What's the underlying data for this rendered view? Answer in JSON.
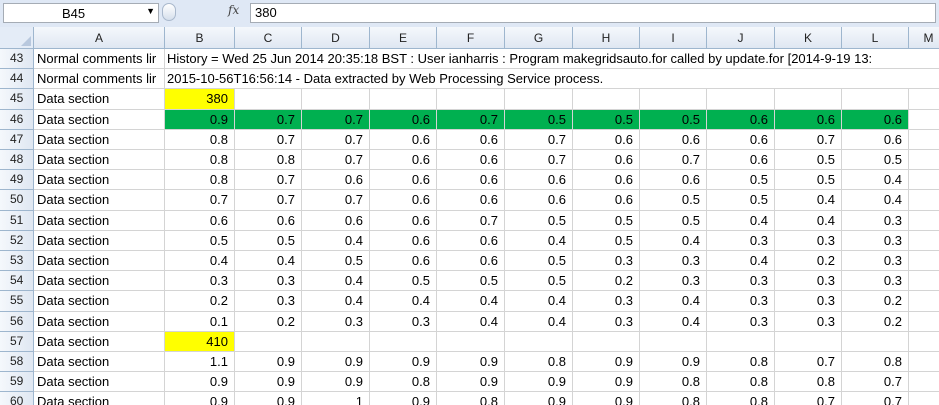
{
  "name_box": "B45",
  "formula_value": "380",
  "columns": [
    "A",
    "B",
    "C",
    "D",
    "E",
    "F",
    "G",
    "H",
    "I",
    "J",
    "K",
    "L",
    "M"
  ],
  "colors": {
    "highlight_yellow": "#ffff00",
    "highlight_green": "#00b050",
    "header_blue": "#dfe8f5"
  },
  "rows": [
    {
      "num": "43",
      "a": "Normal comments lir",
      "b": "History = Wed 25 Jun 2014 20:35:18 BST : User ianharris : Program makegridsauto.for called by update.for [2014-9-19 13:",
      "vals": [],
      "style": "comment"
    },
    {
      "num": "44",
      "a": "Normal comments lir",
      "b": "2015-10-56T16:56:14 - Data extracted by Web Processing Service process.",
      "vals": [],
      "style": "comment"
    },
    {
      "num": "45",
      "a": "Data section",
      "vals": [
        "380"
      ],
      "style": "yellow"
    },
    {
      "num": "46",
      "a": "Data section",
      "vals": [
        "0.9",
        "0.7",
        "0.7",
        "0.6",
        "0.7",
        "0.5",
        "0.5",
        "0.5",
        "0.6",
        "0.6",
        "0.6"
      ],
      "style": "green"
    },
    {
      "num": "47",
      "a": "Data section",
      "vals": [
        "0.8",
        "0.7",
        "0.7",
        "0.6",
        "0.6",
        "0.7",
        "0.6",
        "0.6",
        "0.6",
        "0.7",
        "0.6"
      ],
      "style": ""
    },
    {
      "num": "48",
      "a": "Data section",
      "vals": [
        "0.8",
        "0.8",
        "0.7",
        "0.6",
        "0.6",
        "0.7",
        "0.6",
        "0.7",
        "0.6",
        "0.5",
        "0.5"
      ],
      "style": ""
    },
    {
      "num": "49",
      "a": "Data section",
      "vals": [
        "0.8",
        "0.7",
        "0.6",
        "0.6",
        "0.6",
        "0.6",
        "0.6",
        "0.6",
        "0.5",
        "0.5",
        "0.4"
      ],
      "style": ""
    },
    {
      "num": "50",
      "a": "Data section",
      "vals": [
        "0.7",
        "0.7",
        "0.7",
        "0.6",
        "0.6",
        "0.6",
        "0.6",
        "0.5",
        "0.5",
        "0.4",
        "0.4"
      ],
      "style": ""
    },
    {
      "num": "51",
      "a": "Data section",
      "vals": [
        "0.6",
        "0.6",
        "0.6",
        "0.6",
        "0.7",
        "0.5",
        "0.5",
        "0.5",
        "0.4",
        "0.4",
        "0.3"
      ],
      "style": ""
    },
    {
      "num": "52",
      "a": "Data section",
      "vals": [
        "0.5",
        "0.5",
        "0.4",
        "0.6",
        "0.6",
        "0.4",
        "0.5",
        "0.4",
        "0.3",
        "0.3",
        "0.3"
      ],
      "style": ""
    },
    {
      "num": "53",
      "a": "Data section",
      "vals": [
        "0.4",
        "0.4",
        "0.5",
        "0.6",
        "0.6",
        "0.5",
        "0.3",
        "0.3",
        "0.4",
        "0.2",
        "0.3"
      ],
      "style": ""
    },
    {
      "num": "54",
      "a": "Data section",
      "vals": [
        "0.3",
        "0.3",
        "0.4",
        "0.5",
        "0.5",
        "0.5",
        "0.2",
        "0.3",
        "0.3",
        "0.3",
        "0.3"
      ],
      "style": ""
    },
    {
      "num": "55",
      "a": "Data section",
      "vals": [
        "0.2",
        "0.3",
        "0.4",
        "0.4",
        "0.4",
        "0.4",
        "0.3",
        "0.4",
        "0.3",
        "0.3",
        "0.2"
      ],
      "style": ""
    },
    {
      "num": "56",
      "a": "Data section",
      "vals": [
        "0.1",
        "0.2",
        "0.3",
        "0.3",
        "0.4",
        "0.4",
        "0.3",
        "0.4",
        "0.3",
        "0.3",
        "0.2"
      ],
      "style": ""
    },
    {
      "num": "57",
      "a": "Data section",
      "vals": [
        "410"
      ],
      "style": "yellow"
    },
    {
      "num": "58",
      "a": "Data section",
      "vals": [
        "1.1",
        "0.9",
        "0.9",
        "0.9",
        "0.9",
        "0.8",
        "0.9",
        "0.9",
        "0.8",
        "0.7",
        "0.8"
      ],
      "style": ""
    },
    {
      "num": "59",
      "a": "Data section",
      "vals": [
        "0.9",
        "0.9",
        "0.9",
        "0.8",
        "0.9",
        "0.9",
        "0.9",
        "0.8",
        "0.8",
        "0.8",
        "0.7"
      ],
      "style": ""
    },
    {
      "num": "60",
      "a": "Data section",
      "vals": [
        "0.9",
        "0.9",
        "1",
        "0.9",
        "0.8",
        "0.9",
        "0.9",
        "0.8",
        "0.8",
        "0.7",
        "0.7"
      ],
      "style": ""
    }
  ]
}
